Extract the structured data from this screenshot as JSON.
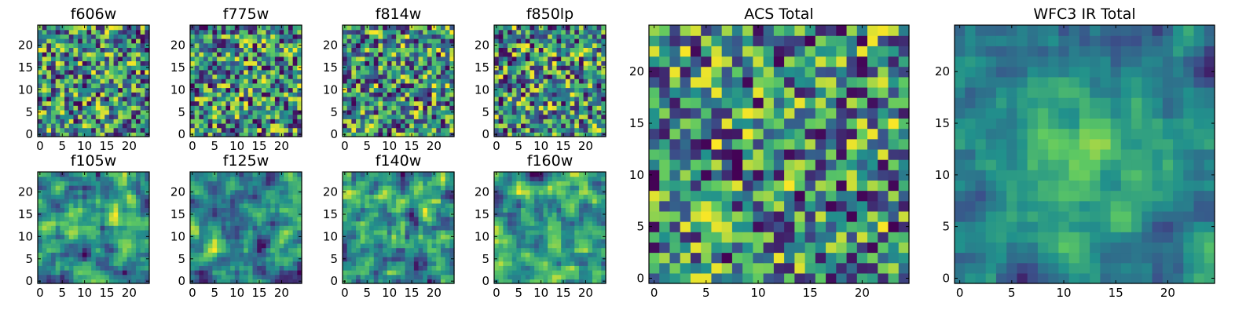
{
  "figure": {
    "type": "heatmap",
    "colormap": "viridis",
    "colormap_stops": [
      "#440154",
      "#3b528b",
      "#21918c",
      "#5ec962",
      "#fde725"
    ],
    "background": "#ffffff"
  },
  "chart_data": [
    {
      "type": "heatmap",
      "title": "f606w",
      "grid_size": [
        25,
        25
      ],
      "xlim": [
        -0.5,
        24.5
      ],
      "ylim": [
        -0.5,
        24.5
      ],
      "xticks": [
        0,
        5,
        10,
        15,
        20
      ],
      "yticks": [
        0,
        5,
        10,
        15,
        20
      ],
      "values": "per-pixel noise image, values not readable"
    },
    {
      "type": "heatmap",
      "title": "f775w",
      "grid_size": [
        25,
        25
      ],
      "xlim": [
        -0.5,
        24.5
      ],
      "ylim": [
        -0.5,
        24.5
      ],
      "xticks": [
        0,
        5,
        10,
        15,
        20
      ],
      "yticks": [
        0,
        5,
        10,
        15,
        20
      ],
      "values": "per-pixel noise image, values not readable"
    },
    {
      "type": "heatmap",
      "title": "f814w",
      "grid_size": [
        25,
        25
      ],
      "xlim": [
        -0.5,
        24.5
      ],
      "ylim": [
        -0.5,
        24.5
      ],
      "xticks": [
        0,
        5,
        10,
        15,
        20
      ],
      "yticks": [
        0,
        5,
        10,
        15,
        20
      ],
      "values": "per-pixel noise image, values not readable"
    },
    {
      "type": "heatmap",
      "title": "f850lp",
      "grid_size": [
        25,
        25
      ],
      "xlim": [
        -0.5,
        24.5
      ],
      "ylim": [
        -0.5,
        24.5
      ],
      "xticks": [
        0,
        5,
        10,
        15,
        20
      ],
      "yticks": [
        0,
        5,
        10,
        15,
        20
      ],
      "values": "per-pixel noise image, values not readable"
    },
    {
      "type": "heatmap",
      "title": "f105w",
      "grid_size": [
        25,
        25
      ],
      "xlim": [
        -0.5,
        24.5
      ],
      "ylim": [
        -0.5,
        24.5
      ],
      "xticks": [
        0,
        5,
        10,
        15,
        20
      ],
      "yticks": [
        0,
        5,
        10,
        15,
        20
      ],
      "values": "per-pixel noise image, values not readable"
    },
    {
      "type": "heatmap",
      "title": "f125w",
      "grid_size": [
        25,
        25
      ],
      "xlim": [
        -0.5,
        24.5
      ],
      "ylim": [
        -0.5,
        24.5
      ],
      "xticks": [
        0,
        5,
        10,
        15,
        20
      ],
      "yticks": [
        0,
        5,
        10,
        15,
        20
      ],
      "values": "per-pixel noise image, values not readable"
    },
    {
      "type": "heatmap",
      "title": "f140w",
      "grid_size": [
        25,
        25
      ],
      "xlim": [
        -0.5,
        24.5
      ],
      "ylim": [
        -0.5,
        24.5
      ],
      "xticks": [
        0,
        5,
        10,
        15,
        20
      ],
      "yticks": [
        0,
        5,
        10,
        15,
        20
      ],
      "values": "per-pixel noise image, values not readable"
    },
    {
      "type": "heatmap",
      "title": "f160w",
      "grid_size": [
        25,
        25
      ],
      "xlim": [
        -0.5,
        24.5
      ],
      "ylim": [
        -0.5,
        24.5
      ],
      "xticks": [
        0,
        5,
        10,
        15,
        20
      ],
      "yticks": [
        0,
        5,
        10,
        15,
        20
      ],
      "values": "per-pixel noise image, values not readable"
    },
    {
      "type": "heatmap",
      "title": "ACS Total",
      "grid_size": [
        25,
        25
      ],
      "xlim": [
        -0.5,
        24.5
      ],
      "ylim": [
        -0.5,
        24.5
      ],
      "xticks": [
        0,
        5,
        10,
        15,
        20
      ],
      "yticks": [
        0,
        5,
        10,
        15,
        20
      ],
      "values": "per-pixel noise image, values not readable"
    },
    {
      "type": "heatmap",
      "title": "WFC3 IR Total",
      "grid_size": [
        25,
        25
      ],
      "xlim": [
        -0.5,
        24.5
      ],
      "ylim": [
        -0.5,
        24.5
      ],
      "xticks": [
        0,
        5,
        10,
        15,
        20
      ],
      "yticks": [
        0,
        5,
        10,
        15,
        20
      ],
      "values": "per-pixel noise image, values not readable"
    }
  ]
}
